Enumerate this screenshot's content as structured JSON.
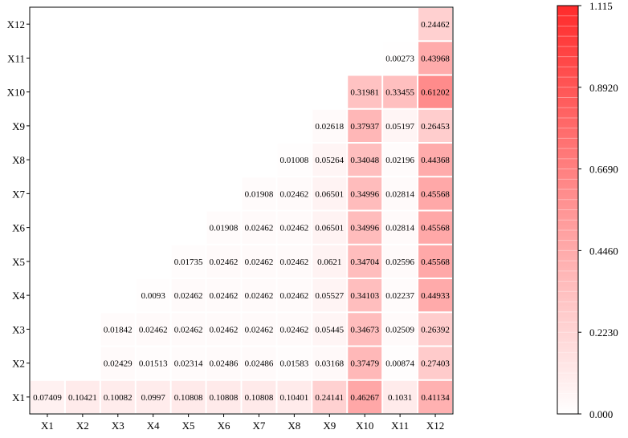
{
  "chart_data": {
    "type": "heatmap",
    "title": "",
    "xlabel": "",
    "ylabel": "",
    "x_labels": [
      "X1",
      "X2",
      "X3",
      "X4",
      "X5",
      "X6",
      "X7",
      "X8",
      "X9",
      "X10",
      "X11",
      "X12"
    ],
    "y_labels": [
      "X1",
      "X2",
      "X3",
      "X4",
      "X5",
      "X6",
      "X7",
      "X8",
      "X9",
      "X10",
      "X11",
      "X12"
    ],
    "cells": [
      {
        "row": "X1",
        "values": [
          "0.07409",
          "0.10421",
          "0.10082",
          "0.0997",
          "0.10808",
          "0.10808",
          "0.10808",
          "0.10401",
          "0.24141",
          "0.46267",
          "0.1031",
          "0.41134"
        ]
      },
      {
        "row": "X2",
        "values": [
          null,
          null,
          "0.02429",
          "0.01513",
          "0.02314",
          "0.02486",
          "0.02486",
          "0.01583",
          "0.03168",
          "0.37479",
          "0.00874",
          "0.27403"
        ]
      },
      {
        "row": "X3",
        "values": [
          null,
          null,
          "0.01842",
          "0.02462",
          "0.02462",
          "0.02462",
          "0.02462",
          "0.02462",
          "0.05445",
          "0.34673",
          "0.02509",
          "0.26392"
        ]
      },
      {
        "row": "X4",
        "values": [
          null,
          null,
          null,
          "0.0093",
          "0.02462",
          "0.02462",
          "0.02462",
          "0.02462",
          "0.05527",
          "0.34103",
          "0.02237",
          "0.44933"
        ]
      },
      {
        "row": "X5",
        "values": [
          null,
          null,
          null,
          null,
          "0.01735",
          "0.02462",
          "0.02462",
          "0.02462",
          "0.0621",
          "0.34704",
          "0.02596",
          "0.45568"
        ]
      },
      {
        "row": "X6",
        "values": [
          null,
          null,
          null,
          null,
          null,
          "0.01908",
          "0.02462",
          "0.02462",
          "0.06501",
          "0.34996",
          "0.02814",
          "0.45568"
        ]
      },
      {
        "row": "X7",
        "values": [
          null,
          null,
          null,
          null,
          null,
          null,
          "0.01908",
          "0.02462",
          "0.06501",
          "0.34996",
          "0.02814",
          "0.45568"
        ]
      },
      {
        "row": "X8",
        "values": [
          null,
          null,
          null,
          null,
          null,
          null,
          null,
          "0.01008",
          "0.05264",
          "0.34048",
          "0.02196",
          "0.44368"
        ]
      },
      {
        "row": "X9",
        "values": [
          null,
          null,
          null,
          null,
          null,
          null,
          null,
          null,
          "0.02618",
          "0.37937",
          "0.05197",
          "0.26453"
        ]
      },
      {
        "row": "X10",
        "values": [
          null,
          null,
          null,
          null,
          null,
          null,
          null,
          null,
          null,
          "0.31981",
          "0.33455",
          "0.61202"
        ]
      },
      {
        "row": "X11",
        "values": [
          null,
          null,
          null,
          null,
          null,
          null,
          null,
          null,
          null,
          null,
          "0.00273",
          "0.43968"
        ]
      },
      {
        "row": "X12",
        "values": [
          null,
          null,
          null,
          null,
          null,
          null,
          null,
          null,
          null,
          null,
          null,
          "0.24462"
        ]
      }
    ],
    "colorbar": {
      "min": 0.0,
      "max": 1.115,
      "tick_labels": [
        "0.000",
        "0.2230",
        "0.4460",
        "0.6690",
        "0.8920",
        "1.115"
      ],
      "color_low": "#ffffff",
      "color_high": "#ff2b2b"
    },
    "grid": false,
    "legend": "right colorbar"
  }
}
